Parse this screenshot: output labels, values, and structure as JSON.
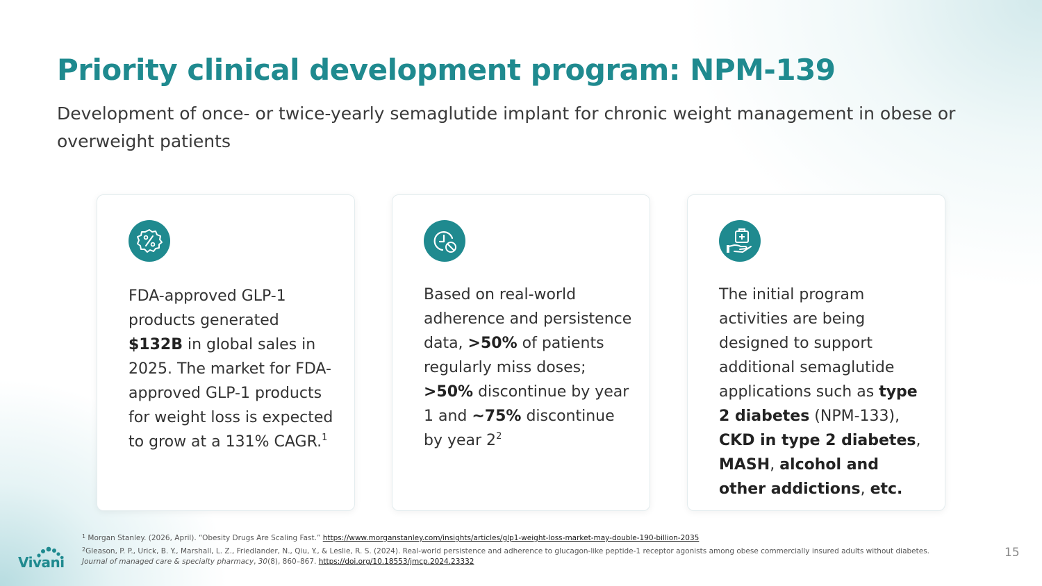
{
  "slide": {
    "title": "Priority clinical development program: NPM-139",
    "subtitle": "Development of once- or twice-yearly semaglutide implant for chronic weight management in obese or overweight patients",
    "page_number": "15",
    "logo_text": "Vivani"
  },
  "cards": [
    {
      "icon": "percent-badge-icon",
      "t1": "FDA-approved GLP-1 products generated ",
      "b1": "$132B",
      "t2": " in global sales in 2025. The market for FDA-approved GLP-1 products for weight loss is expected to grow at a 131% CAGR.",
      "sup": "1"
    },
    {
      "icon": "clock-pill-icon",
      "t1": "Based on real-world adherence and persistence data, ",
      "b1": ">50%",
      "t2": " of patients regularly miss doses; ",
      "b2": ">50%",
      "t3": " discontinue by year 1 and ",
      "b3": "~75%",
      "t4": " discontinue by year 2",
      "sup": "2"
    },
    {
      "icon": "medical-kit-hand-icon",
      "t1": "The initial program activities are being designed to support additional semaglutide applications such as ",
      "b1": "type 2 diabetes",
      "t2": " (NPM-133), ",
      "b2": "CKD in type 2 diabetes",
      "t3": ", ",
      "b3": "MASH",
      "t4": ", ",
      "b4": "alcohol and other addictions",
      "t5": ", ",
      "b5": "etc."
    }
  ],
  "footnotes": {
    "fn1_num": "1",
    "fn1_text": " Morgan Stanley. (2026, April). “Obesity Drugs Are Scaling Fast.” ",
    "fn1_link": "https://www.morganstanley.com/insights/articles/glp1-weight-loss-market-may-double-190-billion-2035",
    "fn2_num": "2",
    "fn2_text": "Gleason, P. P., Urick, B. Y., Marshall, L. Z., Friedlander, N., Qiu, Y., & Leslie, R. S. (2024). Real-world persistence and adherence to glucagon-like peptide-1 receptor agonists among obese commercially insured adults without diabetes. ",
    "fn2_journal": "Journal of managed care & specialty pharmacy",
    "fn2_sep1": ", ",
    "fn2_volume": "30",
    "fn2_issue": "(8), 860–867. ",
    "fn2_link": "https://doi.org/10.18553/jmcp.2024.23332"
  },
  "colors": {
    "accent": "#1f8a8f",
    "text": "#333333"
  }
}
